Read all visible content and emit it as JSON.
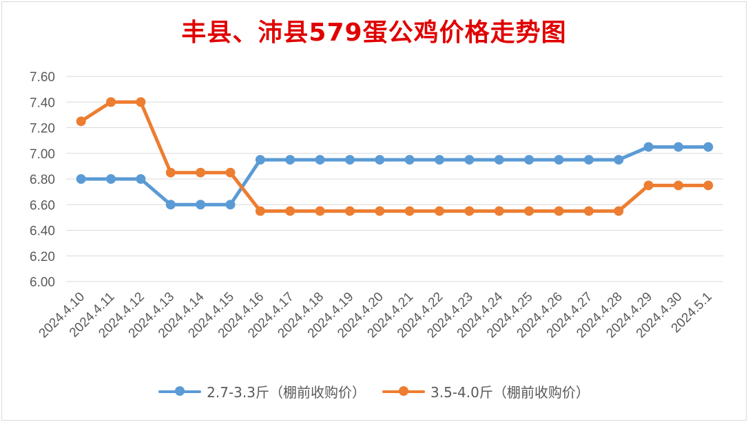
{
  "chart_data": {
    "type": "line",
    "title": "丰县、沛县579蛋公鸡价格走势图",
    "categories": [
      "2024.4.10",
      "2024.4.11",
      "2024.4.12",
      "2024.4.13",
      "2024.4.14",
      "2024.4.15",
      "2024.4.16",
      "2024.4.17",
      "2024.4.18",
      "2024.4.19",
      "2024.4.20",
      "2024.4.21",
      "2024.4.22",
      "2024.4.23",
      "2024.4.24",
      "2024.4.25",
      "2024.4.26",
      "2024.4.27",
      "2024.4.28",
      "2024.4.29",
      "2024.4.30",
      "2024.5.1"
    ],
    "yticks": [
      "6.00",
      "6.20",
      "6.40",
      "6.60",
      "6.80",
      "7.00",
      "7.20",
      "7.40",
      "7.60"
    ],
    "ylim": [
      6.0,
      7.6
    ],
    "grid": true,
    "legend_position": "bottom",
    "series": [
      {
        "name": "2.7-3.3斤（棚前收购价）",
        "color": "#5b9bd5",
        "values": [
          6.8,
          6.8,
          6.8,
          6.6,
          6.6,
          6.6,
          6.95,
          6.95,
          6.95,
          6.95,
          6.95,
          6.95,
          6.95,
          6.95,
          6.95,
          6.95,
          6.95,
          6.95,
          6.95,
          7.05,
          7.05,
          7.05
        ]
      },
      {
        "name": "3.5-4.0斤（棚前收购价）",
        "color": "#ed7d31",
        "values": [
          7.25,
          7.4,
          7.4,
          6.85,
          6.85,
          6.85,
          6.55,
          6.55,
          6.55,
          6.55,
          6.55,
          6.55,
          6.55,
          6.55,
          6.55,
          6.55,
          6.55,
          6.55,
          6.55,
          6.75,
          6.75,
          6.75
        ]
      }
    ]
  }
}
